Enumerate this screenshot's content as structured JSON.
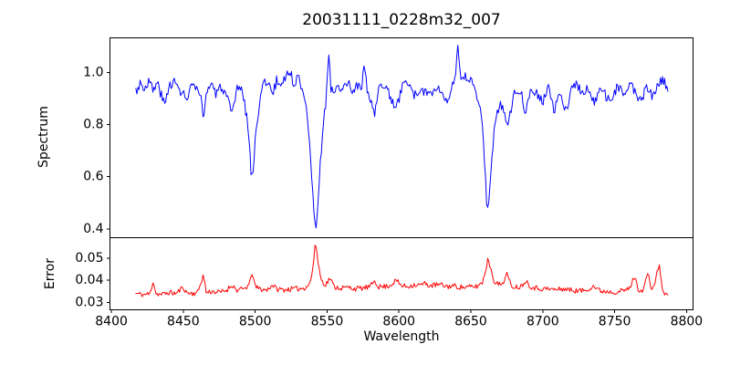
{
  "figure": {
    "title": "20031111_0228m32_007",
    "background_color": "#ffffff",
    "axis_color": "#000000"
  },
  "x_axis": {
    "label": "Wavelength",
    "xlim": [
      8399,
      8804.5
    ],
    "tick_values": [
      8400,
      8450,
      8500,
      8550,
      8600,
      8650,
      8700,
      8750,
      8800
    ],
    "tick_labels": [
      "8400",
      "8450",
      "8500",
      "8550",
      "8600",
      "8650",
      "8700",
      "8750",
      "8800"
    ]
  },
  "chart_data": [
    {
      "name": "spectrum",
      "type": "line",
      "color": "#0000ff",
      "ylabel": "Spectrum",
      "ylim": [
        0.366,
        1.133
      ],
      "y_tick_values": [
        0.4,
        0.6,
        0.8,
        1.0
      ],
      "y_tick_labels": [
        "0.4",
        "0.6",
        "0.8",
        "1.0"
      ],
      "x_data_range": [
        8417,
        8787
      ],
      "n_points": 500,
      "noise_amplitude": 0.021,
      "noise_seed": 3,
      "continuum_level": 0.95,
      "absorption_lines": [
        {
          "wavelength": 8498,
          "core_flux": 0.6
        },
        {
          "wavelength": 8542,
          "core_flux": 0.395
        },
        {
          "wavelength": 8662,
          "core_flux": 0.475
        }
      ],
      "envelope_keypoints": [
        [
          8417,
          0.93
        ],
        [
          8420,
          0.96
        ],
        [
          8423,
          0.94
        ],
        [
          8426,
          0.97
        ],
        [
          8429,
          0.93
        ],
        [
          8432,
          0.96
        ],
        [
          8435,
          0.91
        ],
        [
          8437,
          0.87
        ],
        [
          8440,
          0.95
        ],
        [
          8443,
          0.97
        ],
        [
          8446,
          0.94
        ],
        [
          8450,
          0.92
        ],
        [
          8453,
          0.89
        ],
        [
          8456,
          0.96
        ],
        [
          8459,
          0.93
        ],
        [
          8462,
          0.9
        ],
        [
          8464,
          0.84
        ],
        [
          8467,
          0.94
        ],
        [
          8470,
          0.96
        ],
        [
          8473,
          0.91
        ],
        [
          8476,
          0.95
        ],
        [
          8479,
          0.92
        ],
        [
          8482,
          0.87
        ],
        [
          8484,
          0.83
        ],
        [
          8487,
          0.93
        ],
        [
          8490,
          0.95
        ],
        [
          8492,
          0.9
        ],
        [
          8495,
          0.8
        ],
        [
          8497,
          0.63
        ],
        [
          8498,
          0.6
        ],
        [
          8499,
          0.66
        ],
        [
          8501,
          0.8
        ],
        [
          8503,
          0.89
        ],
        [
          8506,
          0.96
        ],
        [
          8509,
          0.97
        ],
        [
          8512,
          0.91
        ],
        [
          8515,
          0.97
        ],
        [
          8518,
          0.95
        ],
        [
          8521,
          0.99
        ],
        [
          8524,
          1.0
        ],
        [
          8527,
          0.96
        ],
        [
          8530,
          0.98
        ],
        [
          8533,
          0.94
        ],
        [
          8535,
          0.9
        ],
        [
          8537,
          0.8
        ],
        [
          8539,
          0.63
        ],
        [
          8541,
          0.43
        ],
        [
          8542,
          0.395
        ],
        [
          8543,
          0.45
        ],
        [
          8545,
          0.63
        ],
        [
          8547,
          0.79
        ],
        [
          8549,
          0.87
        ],
        [
          8551,
          1.08
        ],
        [
          8553,
          0.92
        ],
        [
          8556,
          0.95
        ],
        [
          8560,
          0.92
        ],
        [
          8564,
          0.96
        ],
        [
          8568,
          0.93
        ],
        [
          8571,
          0.95
        ],
        [
          8574,
          0.94
        ],
        [
          8576,
          1.03
        ],
        [
          8578,
          0.92
        ],
        [
          8581,
          0.88
        ],
        [
          8583,
          0.84
        ],
        [
          8586,
          0.93
        ],
        [
          8590,
          0.96
        ],
        [
          8594,
          0.9
        ],
        [
          8598,
          0.86
        ],
        [
          8602,
          0.94
        ],
        [
          8606,
          0.97
        ],
        [
          8610,
          0.92
        ],
        [
          8614,
          0.9
        ],
        [
          8618,
          0.94
        ],
        [
          8622,
          0.91
        ],
        [
          8626,
          0.95
        ],
        [
          8630,
          0.92
        ],
        [
          8634,
          0.9
        ],
        [
          8637,
          0.95
        ],
        [
          8639,
          0.97
        ],
        [
          8641,
          1.09
        ],
        [
          8643,
          0.96
        ],
        [
          8646,
          0.98
        ],
        [
          8650,
          0.97
        ],
        [
          8653,
          0.94
        ],
        [
          8655,
          0.9
        ],
        [
          8657,
          0.84
        ],
        [
          8659,
          0.72
        ],
        [
          8661,
          0.5
        ],
        [
          8662,
          0.475
        ],
        [
          8663,
          0.54
        ],
        [
          8665,
          0.7
        ],
        [
          8667,
          0.82
        ],
        [
          8670,
          0.88
        ],
        [
          8673,
          0.85
        ],
        [
          8676,
          0.81
        ],
        [
          8680,
          0.92
        ],
        [
          8684,
          0.94
        ],
        [
          8688,
          0.85
        ],
        [
          8692,
          0.95
        ],
        [
          8696,
          0.92
        ],
        [
          8700,
          0.89
        ],
        [
          8704,
          0.94
        ],
        [
          8708,
          0.85
        ],
        [
          8712,
          0.92
        ],
        [
          8716,
          0.85
        ],
        [
          8720,
          0.94
        ],
        [
          8724,
          0.96
        ],
        [
          8728,
          0.91
        ],
        [
          8732,
          0.94
        ],
        [
          8736,
          0.89
        ],
        [
          8740,
          0.94
        ],
        [
          8744,
          0.91
        ],
        [
          8748,
          0.89
        ],
        [
          8752,
          0.95
        ],
        [
          8756,
          0.91
        ],
        [
          8760,
          0.96
        ],
        [
          8764,
          0.93
        ],
        [
          8768,
          0.89
        ],
        [
          8772,
          0.94
        ],
        [
          8776,
          0.91
        ],
        [
          8780,
          0.95
        ],
        [
          8784,
          0.97
        ],
        [
          8787,
          0.94
        ]
      ]
    },
    {
      "name": "error",
      "type": "line",
      "color": "#ff0000",
      "ylabel": "Error",
      "ylim": [
        0.0266,
        0.0594
      ],
      "y_tick_values": [
        0.03,
        0.04,
        0.05
      ],
      "y_tick_labels": [
        "0.03",
        "0.04",
        "0.05"
      ],
      "x_data_range": [
        8417,
        8787
      ],
      "n_points": 500,
      "noise_amplitude": 0.0012,
      "noise_seed": 11,
      "baseline_level": 0.035,
      "peak": {
        "wavelength": 8542,
        "value": 0.0575
      },
      "envelope_keypoints": [
        [
          8417,
          0.034
        ],
        [
          8422,
          0.0335
        ],
        [
          8427,
          0.0338
        ],
        [
          8429,
          0.04
        ],
        [
          8431,
          0.034
        ],
        [
          8435,
          0.0335
        ],
        [
          8440,
          0.0345
        ],
        [
          8445,
          0.034
        ],
        [
          8450,
          0.037
        ],
        [
          8452,
          0.0345
        ],
        [
          8456,
          0.034
        ],
        [
          8460,
          0.0345
        ],
        [
          8464,
          0.0425
        ],
        [
          8466,
          0.0345
        ],
        [
          8470,
          0.035
        ],
        [
          8475,
          0.0345
        ],
        [
          8480,
          0.0355
        ],
        [
          8484,
          0.038
        ],
        [
          8487,
          0.0355
        ],
        [
          8492,
          0.036
        ],
        [
          8496,
          0.038
        ],
        [
          8498,
          0.044
        ],
        [
          8500,
          0.037
        ],
        [
          8504,
          0.036
        ],
        [
          8508,
          0.0355
        ],
        [
          8512,
          0.038
        ],
        [
          8515,
          0.036
        ],
        [
          8520,
          0.0358
        ],
        [
          8525,
          0.036
        ],
        [
          8530,
          0.0362
        ],
        [
          8534,
          0.0365
        ],
        [
          8538,
          0.0385
        ],
        [
          8540,
          0.045
        ],
        [
          8542,
          0.0575
        ],
        [
          8544,
          0.047
        ],
        [
          8546,
          0.04
        ],
        [
          8549,
          0.038
        ],
        [
          8552,
          0.041
        ],
        [
          8555,
          0.037
        ],
        [
          8560,
          0.0365
        ],
        [
          8565,
          0.0368
        ],
        [
          8570,
          0.0362
        ],
        [
          8575,
          0.0365
        ],
        [
          8580,
          0.037
        ],
        [
          8583,
          0.04
        ],
        [
          8586,
          0.037
        ],
        [
          8590,
          0.0372
        ],
        [
          8594,
          0.0378
        ],
        [
          8598,
          0.04
        ],
        [
          8602,
          0.0375
        ],
        [
          8606,
          0.0372
        ],
        [
          8610,
          0.038
        ],
        [
          8614,
          0.0378
        ],
        [
          8618,
          0.0385
        ],
        [
          8622,
          0.0375
        ],
        [
          8626,
          0.038
        ],
        [
          8630,
          0.0378
        ],
        [
          8634,
          0.0372
        ],
        [
          8638,
          0.0375
        ],
        [
          8642,
          0.037
        ],
        [
          8646,
          0.0368
        ],
        [
          8650,
          0.037
        ],
        [
          8654,
          0.0372
        ],
        [
          8658,
          0.039
        ],
        [
          8660,
          0.044
        ],
        [
          8662,
          0.05
        ],
        [
          8664,
          0.045
        ],
        [
          8666,
          0.04
        ],
        [
          8669,
          0.038
        ],
        [
          8672,
          0.0385
        ],
        [
          8675,
          0.043
        ],
        [
          8678,
          0.0375
        ],
        [
          8682,
          0.037
        ],
        [
          8685,
          0.0372
        ],
        [
          8688,
          0.04
        ],
        [
          8692,
          0.037
        ],
        [
          8696,
          0.0365
        ],
        [
          8700,
          0.0362
        ],
        [
          8705,
          0.036
        ],
        [
          8710,
          0.0358
        ],
        [
          8715,
          0.0362
        ],
        [
          8720,
          0.0355
        ],
        [
          8725,
          0.0352
        ],
        [
          8730,
          0.0355
        ],
        [
          8735,
          0.0375
        ],
        [
          8740,
          0.0352
        ],
        [
          8745,
          0.035
        ],
        [
          8750,
          0.0348
        ],
        [
          8755,
          0.0352
        ],
        [
          8760,
          0.036
        ],
        [
          8764,
          0.042
        ],
        [
          8766,
          0.036
        ],
        [
          8770,
          0.0355
        ],
        [
          8773,
          0.044
        ],
        [
          8775,
          0.036
        ],
        [
          8778,
          0.0385
        ],
        [
          8781,
          0.048
        ],
        [
          8783,
          0.0355
        ],
        [
          8785,
          0.034
        ],
        [
          8787,
          0.0335
        ]
      ]
    }
  ]
}
